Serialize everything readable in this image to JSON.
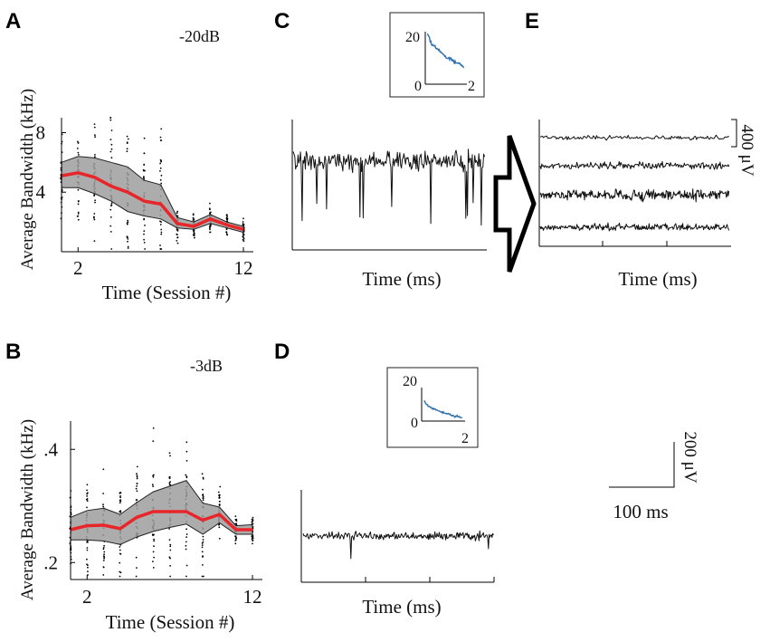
{
  "panels": {
    "A": {
      "letter": "A",
      "level": "-20dB"
    },
    "B": {
      "letter": "B",
      "level": "-3dB"
    },
    "C": {
      "letter": "C",
      "inset": {
        "ytick": "20",
        "xtick_start": "0",
        "xtick_end": "2"
      },
      "xlabel": "Time (ms)"
    },
    "D": {
      "letter": "D",
      "inset": {
        "ytick": "20",
        "xtick_start": "0",
        "xtick_end": "2"
      },
      "xlabel": "Time (ms)"
    },
    "E": {
      "letter": "E",
      "xlabel": "Time (ms)",
      "scale_label": "400 μV",
      "traces": 4
    }
  },
  "scalebar": {
    "y_label": "200 μV",
    "x_label": "100 ms"
  },
  "colors": {
    "mean_line": "#e8262a",
    "band": "#9d9d9d",
    "inset_line": "#2f6fae",
    "trace": "#111111"
  },
  "chart_data": [
    {
      "id": "A",
      "type": "line",
      "title": "-20dB",
      "xlabel": "Time (Session #)",
      "ylabel": "Average Bandwidth (kHz)",
      "xlim": [
        1,
        12.6
      ],
      "ylim": [
        0,
        9
      ],
      "xticks": [
        2,
        12
      ],
      "yticks": [
        4,
        8
      ],
      "x": [
        1,
        2,
        3,
        4,
        5,
        6,
        7,
        8,
        9,
        10,
        11,
        12
      ],
      "series": [
        {
          "name": "mean",
          "values": [
            5.1,
            5.3,
            5.0,
            4.4,
            4.0,
            3.4,
            3.2,
            1.9,
            1.7,
            2.2,
            1.8,
            1.5
          ]
        },
        {
          "name": "upper",
          "values": [
            6.0,
            6.4,
            6.3,
            6.0,
            5.7,
            4.8,
            4.5,
            2.3,
            2.0,
            2.5,
            2.0,
            1.7
          ]
        },
        {
          "name": "lower",
          "values": [
            4.3,
            4.3,
            3.9,
            3.4,
            2.7,
            2.4,
            2.2,
            1.6,
            1.5,
            1.9,
            1.6,
            1.3
          ]
        }
      ]
    },
    {
      "id": "B",
      "type": "line",
      "title": "-3dB",
      "xlabel": "Time (Session #)",
      "ylabel": "Average Bandwidth (kHz)",
      "xlim": [
        1,
        12.6
      ],
      "ylim": [
        0.17,
        0.45
      ],
      "xticks": [
        2,
        12
      ],
      "yticks": [
        0.2,
        0.4
      ],
      "ytick_labels": [
        ".2",
        ".4"
      ],
      "x": [
        1,
        2,
        3,
        4,
        5,
        6,
        7,
        8,
        9,
        10,
        11,
        12
      ],
      "series": [
        {
          "name": "mean",
          "values": [
            0.258,
            0.265,
            0.266,
            0.26,
            0.28,
            0.29,
            0.29,
            0.29,
            0.275,
            0.285,
            0.258,
            0.258
          ]
        },
        {
          "name": "upper",
          "values": [
            0.28,
            0.292,
            0.296,
            0.285,
            0.306,
            0.325,
            0.335,
            0.345,
            0.305,
            0.298,
            0.265,
            0.267
          ]
        },
        {
          "name": "lower",
          "values": [
            0.24,
            0.24,
            0.238,
            0.232,
            0.245,
            0.255,
            0.262,
            0.268,
            0.25,
            0.27,
            0.25,
            0.25
          ]
        }
      ]
    },
    {
      "id": "C-inset",
      "type": "line",
      "xlim": [
        0,
        2
      ],
      "ylim": [
        0,
        20
      ],
      "xticks": [
        0,
        2
      ],
      "yticks": [
        20
      ],
      "x": [
        0.1,
        0.3,
        0.5,
        0.7,
        0.9,
        1.1,
        1.3,
        1.5,
        1.7,
        1.9
      ],
      "values": [
        19.5,
        15.5,
        14.0,
        12.5,
        11.0,
        10.0,
        9.0,
        8.0,
        7.5,
        6.5
      ]
    },
    {
      "id": "D-inset",
      "type": "line",
      "xlim": [
        0,
        2
      ],
      "ylim": [
        0,
        20
      ],
      "xticks": [
        0,
        2
      ],
      "yticks": [
        20
      ],
      "x": [
        0.1,
        0.3,
        0.5,
        0.7,
        0.9,
        1.1,
        1.3,
        1.5,
        1.7,
        1.9
      ],
      "values": [
        12,
        9,
        7.5,
        6.5,
        5.5,
        4.5,
        4,
        3,
        2.5,
        2
      ]
    }
  ]
}
